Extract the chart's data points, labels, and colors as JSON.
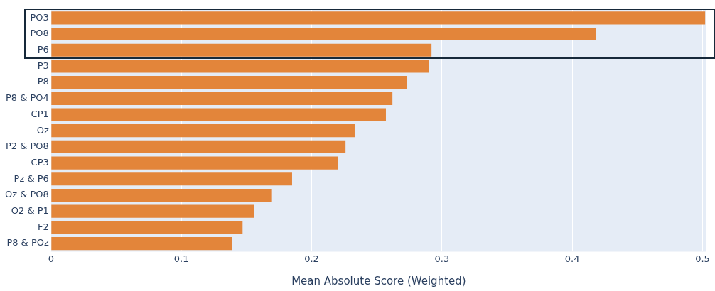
{
  "chart_data": {
    "type": "bar",
    "orientation": "horizontal",
    "xlabel": "Mean Absolute Score (Weighted)",
    "categories": [
      "PO3",
      "PO8",
      "P6",
      "P3",
      "P8",
      "P8 & PO4",
      "CP1",
      "Oz",
      "P2 & PO8",
      "CP3",
      "Pz & P6",
      "Oz & PO8",
      "O2 & P1",
      "F2",
      "P8 & POz"
    ],
    "values": [
      0.502,
      0.418,
      0.292,
      0.29,
      0.273,
      0.262,
      0.257,
      0.233,
      0.226,
      0.22,
      0.185,
      0.169,
      0.156,
      0.147,
      0.139
    ],
    "color": "#e3853a",
    "xlim": [
      0,
      0.503
    ],
    "xticks": [
      0,
      0.1,
      0.2,
      0.3,
      0.4,
      0.5
    ],
    "grid": "x",
    "legend": false
  }
}
